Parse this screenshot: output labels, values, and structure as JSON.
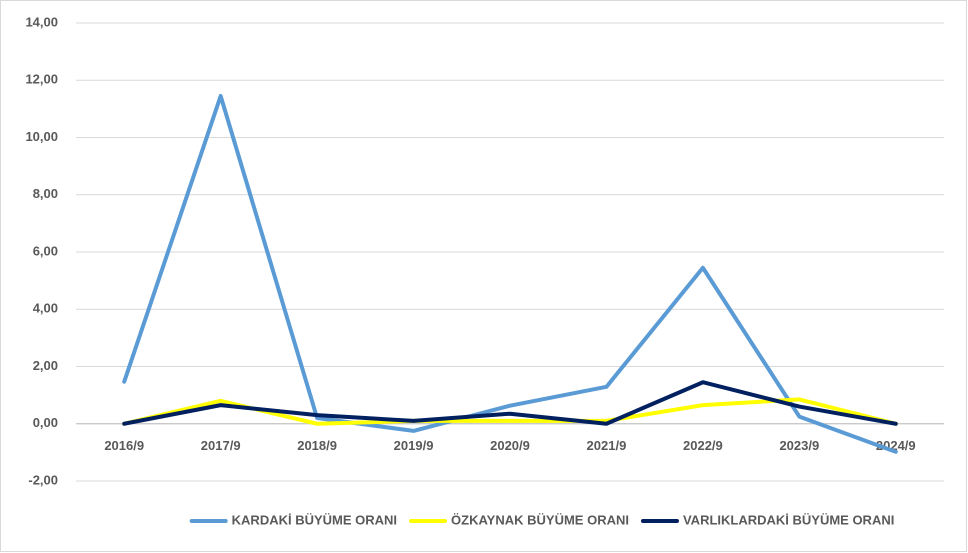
{
  "chart_data": {
    "type": "line",
    "categories": [
      "2016/9",
      "2017/9",
      "2018/9",
      "2019/9",
      "2020/9",
      "2021/9",
      "2022/9",
      "2023/9",
      "2024/9"
    ],
    "series": [
      {
        "name": "KARDAKİ BÜYÜME ORANI",
        "color": "#5b9bd5",
        "values": [
          1.47,
          11.45,
          0.2,
          -0.25,
          0.63,
          1.29,
          5.45,
          0.25,
          -0.98
        ]
      },
      {
        "name": "ÖZKAYNAK BÜYÜME ORANI",
        "color": "#ffff00",
        "values": [
          0,
          0.8,
          0,
          0.1,
          0.1,
          0.1,
          0.65,
          0.85,
          0
        ]
      },
      {
        "name": "VARLIKLARDAKİ BÜYÜME ORANI",
        "color": "#002060",
        "values": [
          0,
          0.65,
          0.3,
          0.1,
          0.35,
          0,
          1.45,
          0.6,
          0
        ]
      }
    ],
    "ylim": [
      -2,
      14
    ],
    "yticks": [
      {
        "value": -2,
        "label": "-2,00"
      },
      {
        "value": 0,
        "label": "0,00"
      },
      {
        "value": 2,
        "label": "2,00"
      },
      {
        "value": 4,
        "label": "4,00"
      },
      {
        "value": 6,
        "label": "6,00"
      },
      {
        "value": 8,
        "label": "8,00"
      },
      {
        "value": 10,
        "label": "10,00"
      },
      {
        "value": 12,
        "label": "12,00"
      },
      {
        "value": 14,
        "label": "14,00"
      }
    ],
    "grid": true,
    "legend": "bottom"
  }
}
